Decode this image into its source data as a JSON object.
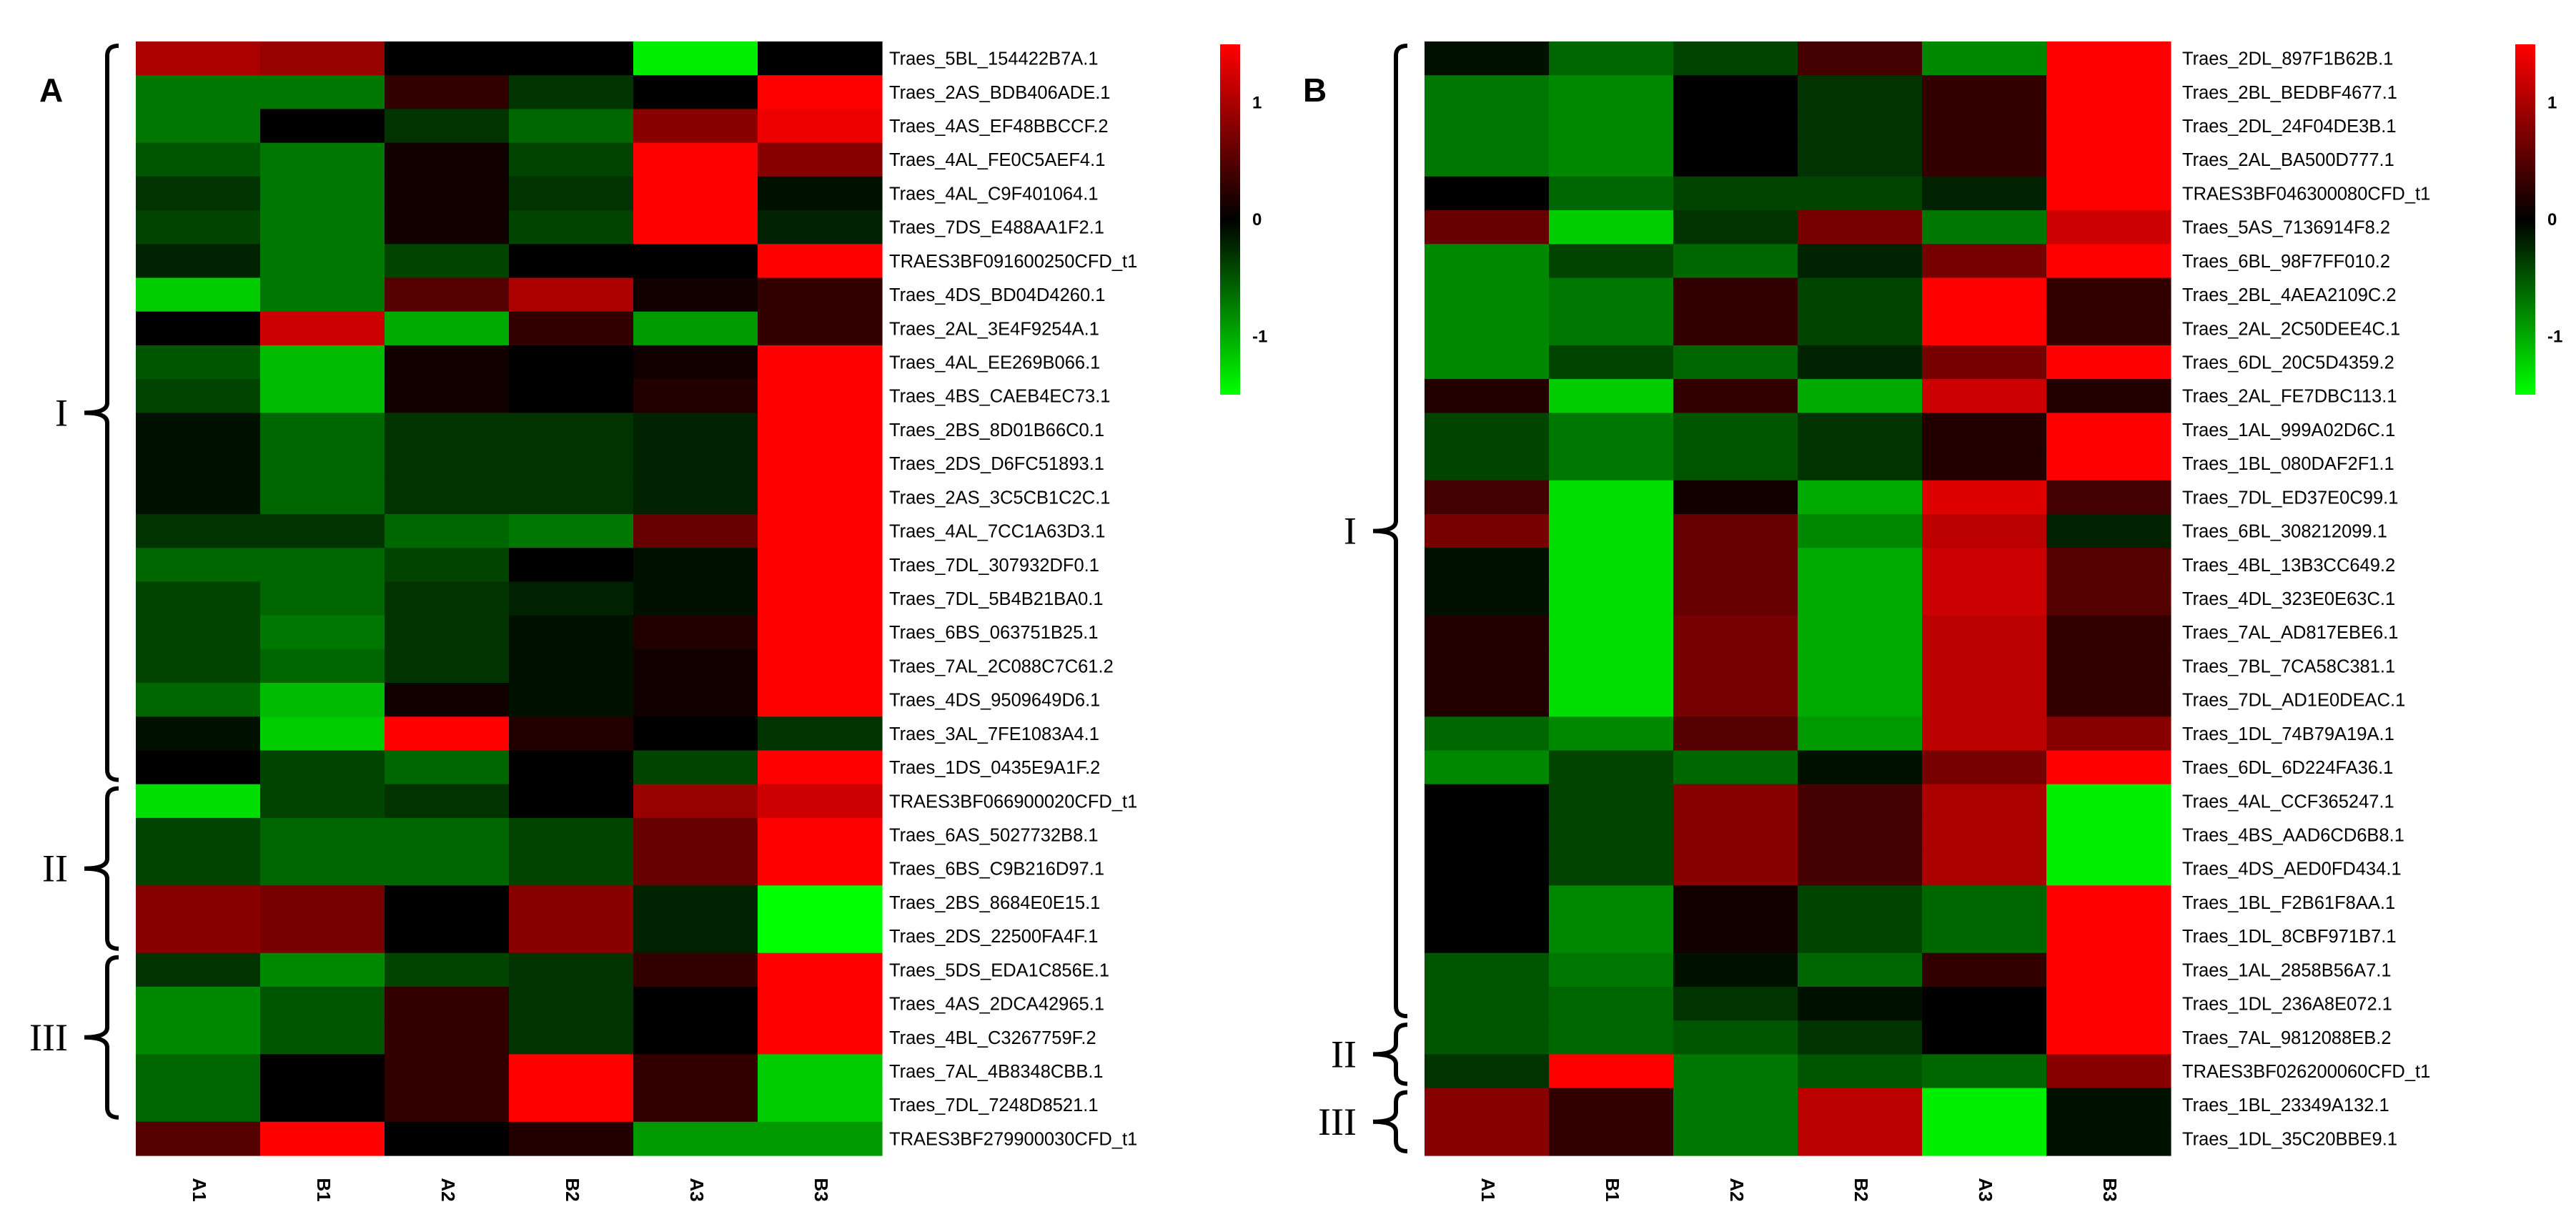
{
  "chart_data": [
    {
      "type": "heatmap",
      "panel_label": "A",
      "columns": [
        "A1",
        "B1",
        "A2",
        "B2",
        "A3",
        "B3"
      ],
      "color_scale": {
        "low": "#00ff00",
        "mid": "#000000",
        "high": "#ff0000",
        "min": -1.5,
        "max": 1.5
      },
      "scale_ticks": [
        "1",
        "0",
        "-1"
      ],
      "scale_tick_values": [
        1,
        0,
        -1
      ],
      "rows": [
        {
          "gene": "Traes_5BL_154422B7A.1",
          "values": [
            1.0,
            0.9,
            0.0,
            0.0,
            -1.4,
            0.0
          ]
        },
        {
          "gene": "Traes_2AS_BDB406ADE.1",
          "values": [
            -0.7,
            -0.7,
            0.3,
            -0.3,
            0.0,
            1.5
          ]
        },
        {
          "gene": "Traes_4AS_EF48BBCCF.2",
          "values": [
            -0.7,
            0.0,
            -0.3,
            -0.6,
            0.8,
            1.4
          ]
        },
        {
          "gene": "Traes_4AL_FE0C5AEF4.1",
          "values": [
            -0.5,
            -0.7,
            0.1,
            -0.4,
            1.5,
            0.8
          ]
        },
        {
          "gene": "Traes_4AL_C9F401064.1",
          "values": [
            -0.3,
            -0.7,
            0.1,
            -0.3,
            1.5,
            -0.1
          ]
        },
        {
          "gene": "Traes_7DS_E488AA1F2.1",
          "values": [
            -0.4,
            -0.7,
            0.1,
            -0.4,
            1.5,
            -0.2
          ]
        },
        {
          "gene": "TRAES3BF091600250CFD_t1",
          "values": [
            -0.2,
            -0.7,
            -0.4,
            0.0,
            0.0,
            1.5
          ]
        },
        {
          "gene": "Traes_4DS_BD04D4260.1",
          "values": [
            -1.2,
            -0.7,
            0.5,
            1.0,
            0.1,
            0.3
          ]
        },
        {
          "gene": "Traes_2AL_3E4F9254A.1",
          "values": [
            0.0,
            1.2,
            -1.0,
            0.3,
            -0.9,
            0.3
          ]
        },
        {
          "gene": "Traes_4AL_EE269B066.1",
          "values": [
            -0.5,
            -1.1,
            0.1,
            0.0,
            0.1,
            1.5
          ]
        },
        {
          "gene": "Traes_4BS_CAEB4EC73.1",
          "values": [
            -0.4,
            -1.1,
            0.1,
            0.0,
            0.2,
            1.5
          ]
        },
        {
          "gene": "Traes_2BS_8D01B66C0.1",
          "values": [
            -0.1,
            -0.6,
            -0.3,
            -0.3,
            -0.2,
            1.5
          ]
        },
        {
          "gene": "Traes_2DS_D6FC51893.1",
          "values": [
            -0.1,
            -0.6,
            -0.3,
            -0.3,
            -0.2,
            1.5
          ]
        },
        {
          "gene": "Traes_2AS_3C5CB1C2C.1",
          "values": [
            -0.1,
            -0.6,
            -0.3,
            -0.3,
            -0.2,
            1.5
          ]
        },
        {
          "gene": "Traes_4AL_7CC1A63D3.1",
          "values": [
            -0.3,
            -0.3,
            -0.6,
            -0.7,
            0.6,
            1.5
          ]
        },
        {
          "gene": "Traes_7DL_307932DF0.1",
          "values": [
            -0.6,
            -0.6,
            -0.4,
            0.0,
            -0.1,
            1.5
          ]
        },
        {
          "gene": "Traes_7DL_5B4B21BA0.1",
          "values": [
            -0.4,
            -0.6,
            -0.3,
            -0.2,
            -0.1,
            1.5
          ]
        },
        {
          "gene": "Traes_6BS_063751B25.1",
          "values": [
            -0.4,
            -0.7,
            -0.3,
            -0.1,
            0.2,
            1.5
          ]
        },
        {
          "gene": "Traes_7AL_2C088C7C61.2",
          "values": [
            -0.4,
            -0.6,
            -0.3,
            -0.1,
            0.1,
            1.5
          ]
        },
        {
          "gene": "Traes_4DS_9509649D6.1",
          "values": [
            -0.6,
            -1.1,
            0.1,
            -0.1,
            0.1,
            1.5
          ]
        },
        {
          "gene": "Traes_3AL_7FE1083A4.1",
          "values": [
            -0.1,
            -1.2,
            1.5,
            0.2,
            0.0,
            -0.3
          ]
        },
        {
          "gene": "Traes_1DS_0435E9A1F.2",
          "values": [
            0.0,
            -0.4,
            -0.6,
            0.0,
            -0.4,
            1.5
          ]
        },
        {
          "gene": "TRAES3BF066900020CFD_t1",
          "values": [
            -1.3,
            -0.4,
            -0.3,
            0.0,
            0.9,
            1.2
          ]
        },
        {
          "gene": "Traes_6AS_5027732B8.1",
          "values": [
            -0.4,
            -0.6,
            -0.6,
            -0.4,
            0.6,
            1.5
          ]
        },
        {
          "gene": "Traes_6BS_C9B216D97.1",
          "values": [
            -0.4,
            -0.6,
            -0.6,
            -0.4,
            0.6,
            1.5
          ]
        },
        {
          "gene": "Traes_2BS_8684E0E15.1",
          "values": [
            0.8,
            0.7,
            0.0,
            0.8,
            -0.2,
            -1.5
          ]
        },
        {
          "gene": "Traes_2DS_22500FA4F.1",
          "values": [
            0.8,
            0.7,
            0.0,
            0.8,
            -0.2,
            -1.5
          ]
        },
        {
          "gene": "Traes_5DS_EDA1C856E.1",
          "values": [
            -0.3,
            -0.8,
            -0.4,
            -0.3,
            0.3,
            1.5
          ]
        },
        {
          "gene": "Traes_4AS_2DCA42965.1",
          "values": [
            -0.8,
            -0.5,
            0.3,
            -0.3,
            0.0,
            1.5
          ]
        },
        {
          "gene": "Traes_4BL_C3267759F.2",
          "values": [
            -0.8,
            -0.5,
            0.3,
            -0.3,
            0.0,
            1.5
          ]
        },
        {
          "gene": "Traes_7AL_4B8348CBB.1",
          "values": [
            -0.6,
            0.0,
            0.3,
            1.5,
            0.3,
            -1.2
          ]
        },
        {
          "gene": "Traes_7DL_7248D8521.1",
          "values": [
            -0.6,
            0.0,
            0.3,
            1.5,
            0.3,
            -1.2
          ]
        },
        {
          "gene": "TRAES3BF279900030CFD_t1",
          "values": [
            0.5,
            1.5,
            0.0,
            0.2,
            -0.9,
            -0.9
          ]
        }
      ],
      "clusters": [
        {
          "label": "I",
          "first_row": 0,
          "last_row": 21
        },
        {
          "label": "II",
          "first_row": 22,
          "last_row": 26
        },
        {
          "label": "III",
          "first_row": 27,
          "last_row": 31
        }
      ]
    },
    {
      "type": "heatmap",
      "panel_label": "B",
      "columns": [
        "A1",
        "B1",
        "A2",
        "B2",
        "A3",
        "B3"
      ],
      "color_scale": {
        "low": "#00ff00",
        "mid": "#000000",
        "high": "#ff0000",
        "min": -1.5,
        "max": 1.5
      },
      "scale_ticks": [
        "1",
        "0",
        "-1"
      ],
      "scale_tick_values": [
        1,
        0,
        -1
      ],
      "rows": [
        {
          "gene": "Traes_2DL_897F1B62B.1",
          "values": [
            -0.1,
            -0.6,
            -0.4,
            0.4,
            -0.8,
            1.5
          ]
        },
        {
          "gene": "Traes_2BL_BEDBF4677.1",
          "values": [
            -0.7,
            -0.8,
            0.0,
            -0.3,
            0.3,
            1.5
          ]
        },
        {
          "gene": "Traes_2DL_24F04DE3B.1",
          "values": [
            -0.7,
            -0.8,
            0.0,
            -0.3,
            0.3,
            1.5
          ]
        },
        {
          "gene": "Traes_2AL_BA500D777.1",
          "values": [
            -0.7,
            -0.8,
            0.0,
            -0.3,
            0.3,
            1.5
          ]
        },
        {
          "gene": "TRAES3BF046300080CFD_t1",
          "values": [
            0.0,
            -0.6,
            -0.4,
            -0.4,
            -0.2,
            1.5
          ]
        },
        {
          "gene": "Traes_5AS_7136914F8.2",
          "values": [
            0.6,
            -1.2,
            -0.3,
            0.7,
            -0.7,
            1.2
          ]
        },
        {
          "gene": "Traes_6BL_98F7FF010.2",
          "values": [
            -0.8,
            -0.4,
            -0.6,
            -0.2,
            0.7,
            1.5
          ]
        },
        {
          "gene": "Traes_2BL_4AEA2109C.2",
          "values": [
            -0.8,
            -0.7,
            0.3,
            -0.4,
            1.5,
            0.3
          ]
        },
        {
          "gene": "Traes_2AL_2C50DEE4C.1",
          "values": [
            -0.8,
            -0.7,
            0.3,
            -0.4,
            1.5,
            0.3
          ]
        },
        {
          "gene": "Traes_6DL_20C5D4359.2",
          "values": [
            -0.8,
            -0.4,
            -0.6,
            -0.2,
            0.7,
            1.5
          ]
        },
        {
          "gene": "Traes_2AL_FE7DBC113.1",
          "values": [
            0.2,
            -1.2,
            0.3,
            -1.0,
            1.2,
            0.2
          ]
        },
        {
          "gene": "Traes_1AL_999A02D6C.1",
          "values": [
            -0.4,
            -0.7,
            -0.5,
            -0.3,
            0.2,
            1.5
          ]
        },
        {
          "gene": "Traes_1BL_080DAF2F1.1",
          "values": [
            -0.4,
            -0.7,
            -0.5,
            -0.3,
            0.2,
            1.5
          ]
        },
        {
          "gene": "Traes_7DL_ED37E0C99.1",
          "values": [
            0.4,
            -1.3,
            0.1,
            -1.0,
            1.3,
            0.4
          ]
        },
        {
          "gene": "Traes_6BL_308212099.1",
          "values": [
            0.7,
            -1.3,
            0.6,
            -0.8,
            1.1,
            -0.2
          ]
        },
        {
          "gene": "Traes_4BL_13B3CC649.2",
          "values": [
            -0.1,
            -1.3,
            0.6,
            -1.0,
            1.2,
            0.5
          ]
        },
        {
          "gene": "Traes_4DL_323E0E63C.1",
          "values": [
            -0.1,
            -1.3,
            0.6,
            -1.0,
            1.2,
            0.5
          ]
        },
        {
          "gene": "Traes_7AL_AD817EBE6.1",
          "values": [
            0.2,
            -1.3,
            0.7,
            -1.0,
            1.1,
            0.3
          ]
        },
        {
          "gene": "Traes_7BL_7CA58C381.1",
          "values": [
            0.2,
            -1.3,
            0.7,
            -1.0,
            1.1,
            0.3
          ]
        },
        {
          "gene": "Traes_7DL_AD1E0DEAC.1",
          "values": [
            0.2,
            -1.3,
            0.7,
            -1.0,
            1.1,
            0.3
          ]
        },
        {
          "gene": "Traes_1DL_74B79A19A.1",
          "values": [
            -0.6,
            -0.8,
            0.5,
            -0.9,
            1.1,
            0.8
          ]
        },
        {
          "gene": "Traes_6DL_6D224FA36.1",
          "values": [
            -0.8,
            -0.4,
            -0.6,
            -0.1,
            0.7,
            1.5
          ]
        },
        {
          "gene": "Traes_4AL_CCF365247.1",
          "values": [
            0.0,
            -0.4,
            0.8,
            0.4,
            1.0,
            -1.4
          ]
        },
        {
          "gene": "Traes_4BS_AAD6CD6B8.1",
          "values": [
            0.0,
            -0.4,
            0.8,
            0.4,
            1.0,
            -1.4
          ]
        },
        {
          "gene": "Traes_4DS_AED0FD434.1",
          "values": [
            0.0,
            -0.4,
            0.8,
            0.4,
            1.0,
            -1.4
          ]
        },
        {
          "gene": "Traes_1BL_F2B61F8AA.1",
          "values": [
            0.0,
            -0.8,
            0.1,
            -0.4,
            -0.6,
            1.5
          ]
        },
        {
          "gene": "Traes_1DL_8CBF971B7.1",
          "values": [
            0.0,
            -0.8,
            0.1,
            -0.4,
            -0.6,
            1.5
          ]
        },
        {
          "gene": "Traes_1AL_2858B56A7.1",
          "values": [
            -0.5,
            -0.7,
            -0.1,
            -0.6,
            0.3,
            1.5
          ]
        },
        {
          "gene": "Traes_1DL_236A8E072.1",
          "values": [
            -0.5,
            -0.6,
            -0.3,
            -0.1,
            0.0,
            1.5
          ]
        },
        {
          "gene": "Traes_7AL_9812088EB.2",
          "values": [
            -0.5,
            -0.6,
            -0.5,
            -0.3,
            0.0,
            1.5
          ]
        },
        {
          "gene": "TRAES3BF026200060CFD_t1",
          "values": [
            -0.3,
            1.5,
            -0.7,
            -0.5,
            -0.6,
            0.8
          ]
        },
        {
          "gene": "Traes_1BL_23349A132.1",
          "values": [
            0.8,
            0.3,
            -0.7,
            1.1,
            -1.4,
            -0.1
          ]
        },
        {
          "gene": "Traes_1DL_35C20BBE9.1",
          "values": [
            0.8,
            0.3,
            -0.7,
            1.1,
            -1.4,
            -0.1
          ]
        }
      ],
      "clusters": [
        {
          "label": "I",
          "first_row": 0,
          "last_row": 28
        },
        {
          "label": "II",
          "first_row": 29,
          "last_row": 30
        },
        {
          "label": "III",
          "first_row": 31,
          "last_row": 32
        }
      ]
    }
  ]
}
